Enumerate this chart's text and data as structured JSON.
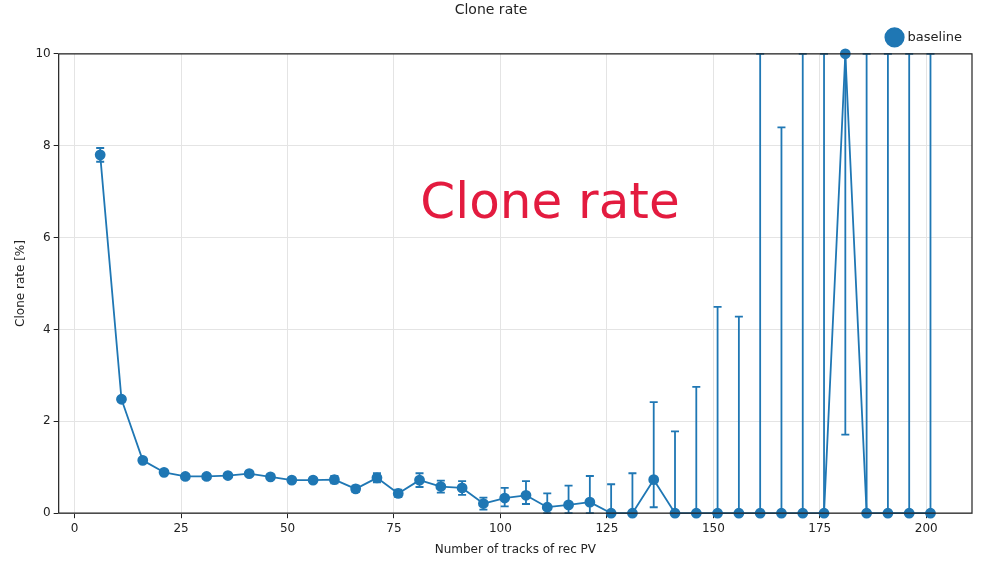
{
  "chart_data": {
    "type": "line",
    "title": "Clone rate",
    "xlabel": "Number of tracks of rec PV",
    "ylabel": "Clone rate [%]",
    "annotations": [
      "Clone rate"
    ],
    "series": [
      {
        "name": "baseline",
        "color": "#1f77b4",
        "x": [
          6,
          11,
          16,
          21,
          26,
          31,
          36,
          41,
          46,
          51,
          56,
          61,
          66,
          71,
          76,
          81,
          86,
          91,
          96,
          101,
          106,
          111,
          116,
          121,
          126,
          131,
          136,
          141,
          146,
          151,
          156,
          161,
          166,
          171,
          176,
          181,
          186,
          191,
          196,
          201
        ],
        "values": [
          7.8,
          2.48,
          1.15,
          0.89,
          0.8,
          0.8,
          0.82,
          0.86,
          0.79,
          0.72,
          0.72,
          0.73,
          0.53,
          0.77,
          0.43,
          0.72,
          0.58,
          0.55,
          0.21,
          0.33,
          0.39,
          0.13,
          0.18,
          0.24,
          0,
          0,
          0.73,
          0,
          0,
          0,
          0,
          0,
          0,
          0,
          0,
          10,
          0,
          0,
          0,
          0
        ],
        "errors": [
          0.15,
          0.05,
          0.05,
          0.05,
          0.05,
          0.05,
          0.05,
          0.05,
          0.05,
          0.05,
          0.05,
          0.08,
          0.07,
          0.1,
          0.08,
          0.15,
          0.13,
          0.15,
          0.13,
          [
            0.15,
            0.55
          ],
          [
            0.2,
            0.7
          ],
          [
            0,
            0.43
          ],
          [
            0,
            0.6
          ],
          [
            0,
            0.81
          ],
          [
            0,
            0.63
          ],
          [
            0,
            0.87
          ],
          [
            0.13,
            2.42
          ],
          [
            0,
            1.78
          ],
          [
            0,
            2.75
          ],
          [
            0,
            4.49
          ],
          [
            0,
            4.28
          ],
          [
            0,
            10
          ],
          [
            0,
            8.4
          ],
          [
            0,
            10
          ],
          [
            0,
            10
          ],
          [
            1.71,
            10
          ],
          [
            0,
            10
          ],
          [
            0,
            10
          ],
          [
            0,
            10
          ],
          [
            0,
            10
          ]
        ]
      }
    ],
    "xlim": [
      -3.75,
      210.75
    ],
    "xticks": [
      0,
      25,
      50,
      75,
      100,
      125,
      150,
      175,
      200
    ],
    "ylim": [
      0,
      10
    ],
    "yticks": [
      0,
      2,
      4,
      6,
      8,
      10
    ],
    "grid": true,
    "legend": "top right",
    "marker": "circle",
    "line_style": "solid"
  }
}
